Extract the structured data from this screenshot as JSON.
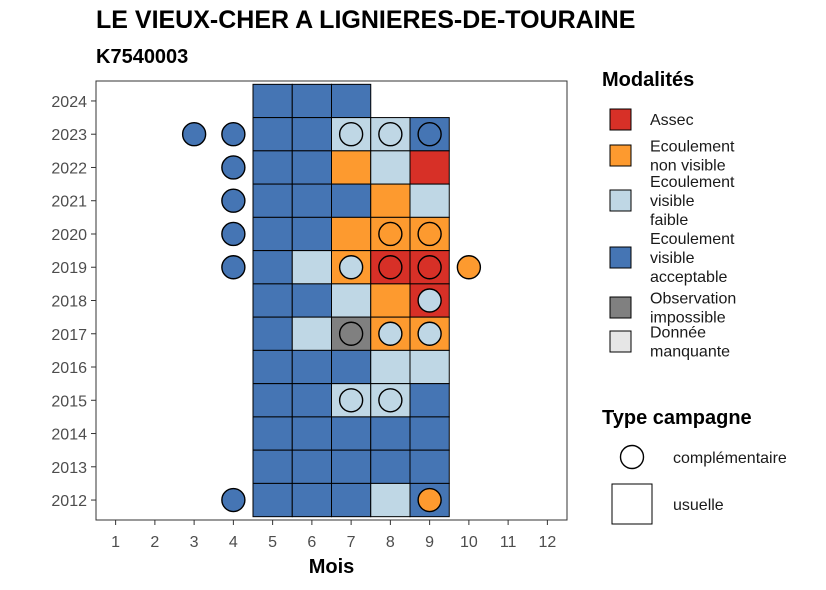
{
  "chart_data": {
    "type": "heatmap",
    "title": "LE VIEUX-CHER A LIGNIERES-DE-TOURAINE",
    "subtitle": "K7540003",
    "xlabel": "Mois",
    "ylabel": "",
    "x_ticks": [
      "1",
      "2",
      "3",
      "4",
      "5",
      "6",
      "7",
      "8",
      "9",
      "10",
      "11",
      "12"
    ],
    "y_ticks": [
      "2012",
      "2013",
      "2014",
      "2015",
      "2016",
      "2017",
      "2018",
      "2019",
      "2020",
      "2021",
      "2022",
      "2023",
      "2024"
    ],
    "xlim": [
      0.5,
      12.5
    ],
    "ylim": [
      2011.4,
      2024.6
    ],
    "grid": false,
    "legend_placement": "right",
    "legend_modalites_title": "Modalités",
    "legend_campagne_title": "Type campagne",
    "modalites": [
      {
        "key": "assec",
        "label_lines": [
          "Assec"
        ],
        "color": "#d73027"
      },
      {
        "key": "ecnv",
        "label_lines": [
          "Ecoulement",
          "non visible"
        ],
        "color": "#fd9a2f"
      },
      {
        "key": "ecvf",
        "label_lines": [
          "Ecoulement",
          "visible",
          "faible"
        ],
        "color": "#bfd7e5"
      },
      {
        "key": "ecva",
        "label_lines": [
          "Ecoulement",
          "visible",
          "acceptable"
        ],
        "color": "#4575b4"
      },
      {
        "key": "obsimp",
        "label_lines": [
          "Observation",
          "impossible"
        ],
        "color": "#808080"
      },
      {
        "key": "manq",
        "label_lines": [
          "Donnée",
          "manquante"
        ],
        "color": "#e6e6e6"
      }
    ],
    "campagne_types": [
      {
        "shape": "circle",
        "label": "complémentaire"
      },
      {
        "shape": "square",
        "label": "usuelle"
      }
    ],
    "usuelle": [
      {
        "year": 2024,
        "month": 5,
        "value": "ecva"
      },
      {
        "year": 2024,
        "month": 6,
        "value": "ecva"
      },
      {
        "year": 2024,
        "month": 7,
        "value": "ecva"
      },
      {
        "year": 2023,
        "month": 5,
        "value": "ecva"
      },
      {
        "year": 2023,
        "month": 6,
        "value": "ecva"
      },
      {
        "year": 2023,
        "month": 7,
        "value": "ecvf"
      },
      {
        "year": 2023,
        "month": 8,
        "value": "ecvf"
      },
      {
        "year": 2023,
        "month": 9,
        "value": "ecva"
      },
      {
        "year": 2022,
        "month": 5,
        "value": "ecva"
      },
      {
        "year": 2022,
        "month": 6,
        "value": "ecva"
      },
      {
        "year": 2022,
        "month": 7,
        "value": "ecnv"
      },
      {
        "year": 2022,
        "month": 8,
        "value": "ecvf"
      },
      {
        "year": 2022,
        "month": 9,
        "value": "assec"
      },
      {
        "year": 2021,
        "month": 5,
        "value": "ecva"
      },
      {
        "year": 2021,
        "month": 6,
        "value": "ecva"
      },
      {
        "year": 2021,
        "month": 7,
        "value": "ecva"
      },
      {
        "year": 2021,
        "month": 8,
        "value": "ecnv"
      },
      {
        "year": 2021,
        "month": 9,
        "value": "ecvf"
      },
      {
        "year": 2020,
        "month": 5,
        "value": "ecva"
      },
      {
        "year": 2020,
        "month": 6,
        "value": "ecva"
      },
      {
        "year": 2020,
        "month": 7,
        "value": "ecnv"
      },
      {
        "year": 2020,
        "month": 8,
        "value": "ecnv"
      },
      {
        "year": 2020,
        "month": 9,
        "value": "ecnv"
      },
      {
        "year": 2019,
        "month": 5,
        "value": "ecva"
      },
      {
        "year": 2019,
        "month": 6,
        "value": "ecvf"
      },
      {
        "year": 2019,
        "month": 7,
        "value": "ecnv"
      },
      {
        "year": 2019,
        "month": 8,
        "value": "assec"
      },
      {
        "year": 2019,
        "month": 9,
        "value": "assec"
      },
      {
        "year": 2018,
        "month": 5,
        "value": "ecva"
      },
      {
        "year": 2018,
        "month": 6,
        "value": "ecva"
      },
      {
        "year": 2018,
        "month": 7,
        "value": "ecvf"
      },
      {
        "year": 2018,
        "month": 8,
        "value": "ecnv"
      },
      {
        "year": 2018,
        "month": 9,
        "value": "assec"
      },
      {
        "year": 2017,
        "month": 5,
        "value": "ecva"
      },
      {
        "year": 2017,
        "month": 6,
        "value": "ecvf"
      },
      {
        "year": 2017,
        "month": 7,
        "value": "obsimp"
      },
      {
        "year": 2017,
        "month": 8,
        "value": "ecnv"
      },
      {
        "year": 2017,
        "month": 9,
        "value": "ecnv"
      },
      {
        "year": 2016,
        "month": 5,
        "value": "ecva"
      },
      {
        "year": 2016,
        "month": 6,
        "value": "ecva"
      },
      {
        "year": 2016,
        "month": 7,
        "value": "ecva"
      },
      {
        "year": 2016,
        "month": 8,
        "value": "ecvf"
      },
      {
        "year": 2016,
        "month": 9,
        "value": "ecvf"
      },
      {
        "year": 2015,
        "month": 5,
        "value": "ecva"
      },
      {
        "year": 2015,
        "month": 6,
        "value": "ecva"
      },
      {
        "year": 2015,
        "month": 7,
        "value": "ecvf"
      },
      {
        "year": 2015,
        "month": 8,
        "value": "ecvf"
      },
      {
        "year": 2015,
        "month": 9,
        "value": "ecva"
      },
      {
        "year": 2014,
        "month": 5,
        "value": "ecva"
      },
      {
        "year": 2014,
        "month": 6,
        "value": "ecva"
      },
      {
        "year": 2014,
        "month": 7,
        "value": "ecva"
      },
      {
        "year": 2014,
        "month": 8,
        "value": "ecva"
      },
      {
        "year": 2014,
        "month": 9,
        "value": "ecva"
      },
      {
        "year": 2013,
        "month": 5,
        "value": "ecva"
      },
      {
        "year": 2013,
        "month": 6,
        "value": "ecva"
      },
      {
        "year": 2013,
        "month": 7,
        "value": "ecva"
      },
      {
        "year": 2013,
        "month": 8,
        "value": "ecva"
      },
      {
        "year": 2013,
        "month": 9,
        "value": "ecva"
      },
      {
        "year": 2012,
        "month": 5,
        "value": "ecva"
      },
      {
        "year": 2012,
        "month": 6,
        "value": "ecva"
      },
      {
        "year": 2012,
        "month": 7,
        "value": "ecva"
      },
      {
        "year": 2012,
        "month": 8,
        "value": "ecvf"
      },
      {
        "year": 2012,
        "month": 9,
        "value": "ecva"
      }
    ],
    "complementaire": [
      {
        "year": 2023,
        "month": 3,
        "value": "ecva"
      },
      {
        "year": 2023,
        "month": 4,
        "value": "ecva"
      },
      {
        "year": 2023,
        "month": 7,
        "value": "ecvf"
      },
      {
        "year": 2023,
        "month": 8,
        "value": "ecvf"
      },
      {
        "year": 2023,
        "month": 9,
        "value": "ecva"
      },
      {
        "year": 2022,
        "month": 4,
        "value": "ecva"
      },
      {
        "year": 2021,
        "month": 4,
        "value": "ecva"
      },
      {
        "year": 2020,
        "month": 4,
        "value": "ecva"
      },
      {
        "year": 2020,
        "month": 8,
        "value": "ecnv"
      },
      {
        "year": 2020,
        "month": 9,
        "value": "ecnv"
      },
      {
        "year": 2019,
        "month": 4,
        "value": "ecva"
      },
      {
        "year": 2019,
        "month": 7,
        "value": "ecvf"
      },
      {
        "year": 2019,
        "month": 8,
        "value": "assec"
      },
      {
        "year": 2019,
        "month": 9,
        "value": "assec"
      },
      {
        "year": 2019,
        "month": 10,
        "value": "ecnv"
      },
      {
        "year": 2018,
        "month": 9,
        "value": "ecvf"
      },
      {
        "year": 2017,
        "month": 7,
        "value": "obsimp"
      },
      {
        "year": 2017,
        "month": 8,
        "value": "ecvf"
      },
      {
        "year": 2017,
        "month": 9,
        "value": "ecvf"
      },
      {
        "year": 2015,
        "month": 7,
        "value": "ecvf"
      },
      {
        "year": 2015,
        "month": 8,
        "value": "ecvf"
      },
      {
        "year": 2012,
        "month": 4,
        "value": "ecva"
      },
      {
        "year": 2012,
        "month": 9,
        "value": "ecnv"
      }
    ]
  }
}
